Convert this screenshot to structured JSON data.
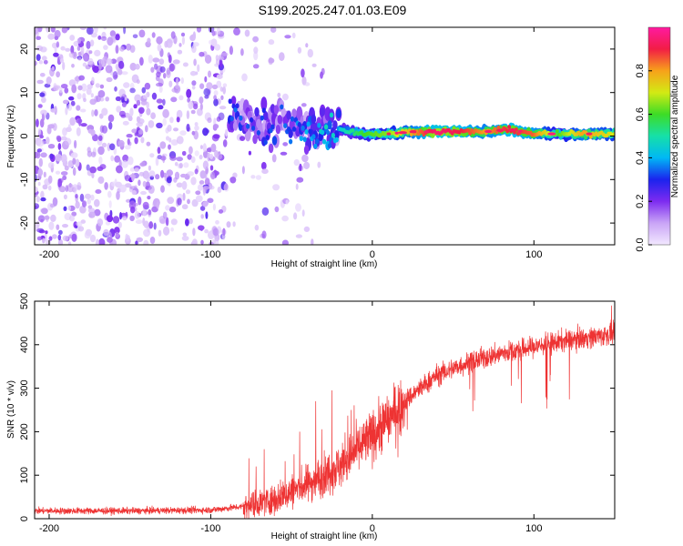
{
  "title": "S199.2025.247.01.03.E09",
  "colors": {
    "snr_line": "#ee3333",
    "scatter_purple": "#7a1cf0",
    "colormap": [
      "#f2e8ff",
      "#c9a4f6",
      "#7d2bf0",
      "#1b23ee",
      "#00b8f5",
      "#16e0a8",
      "#3ddc26",
      "#d3ea14",
      "#f7a21a",
      "#f21d45",
      "#ff1aa0"
    ]
  },
  "chart_data": [
    {
      "type": "heatmap",
      "name": "spectrogram",
      "xlabel": "Height of straight line (km)",
      "ylabel": "Frequency (Hz)",
      "xlim": [
        -209,
        150
      ],
      "ylim": [
        -25,
        25
      ],
      "xticks": [
        -200,
        -100,
        0,
        100
      ],
      "yticks": [
        -20,
        -10,
        0,
        10,
        20
      ],
      "colorbar": {
        "label": "Normalized spectral amplitude",
        "range": [
          0.0,
          1.0
        ],
        "ticks": [
          "0.0",
          "0.2",
          "0.4",
          "0.6",
          "0.8"
        ]
      },
      "noise_region_x": [
        -209,
        -90
      ],
      "signal_track": [
        {
          "x": -88,
          "f": 4.5,
          "amp": 0.35
        },
        {
          "x": -75,
          "f": 3.0,
          "amp": 0.3
        },
        {
          "x": -65,
          "f": 1.0,
          "amp": 0.3
        },
        {
          "x": -55,
          "f": 4.0,
          "amp": 0.28
        },
        {
          "x": -45,
          "f": 1.5,
          "amp": 0.32
        },
        {
          "x": -35,
          "f": 1.0,
          "amp": 0.4
        },
        {
          "x": -20,
          "f": 1.5,
          "amp": 0.45
        },
        {
          "x": -5,
          "f": 0.5,
          "amp": 0.6
        },
        {
          "x": 10,
          "f": 0.5,
          "amp": 0.65
        },
        {
          "x": 25,
          "f": 1.0,
          "amp": 0.8
        },
        {
          "x": 40,
          "f": 1.0,
          "amp": 0.95
        },
        {
          "x": 55,
          "f": 1.0,
          "amp": 0.9
        },
        {
          "x": 70,
          "f": 1.0,
          "amp": 0.8
        },
        {
          "x": 85,
          "f": 1.5,
          "amp": 0.9
        },
        {
          "x": 100,
          "f": 0.5,
          "amp": 0.85
        },
        {
          "x": 115,
          "f": 0.5,
          "amp": 0.6
        },
        {
          "x": 130,
          "f": 0.5,
          "amp": 0.8
        },
        {
          "x": 150,
          "f": 0.5,
          "amp": 0.7
        }
      ]
    },
    {
      "type": "line",
      "name": "snr",
      "xlabel": "Height of straight line (km)",
      "ylabel": "SNR (10 * v/v)",
      "xlim": [
        -209,
        150
      ],
      "ylim": [
        0,
        500
      ],
      "xticks": [
        -200,
        -100,
        0,
        100
      ],
      "yticks": [
        0,
        100,
        200,
        300,
        400,
        500
      ],
      "trend": {
        "x": [
          -209,
          -150,
          -100,
          -80,
          -60,
          -40,
          -20,
          0,
          20,
          40,
          60,
          80,
          100,
          120,
          140,
          150
        ],
        "y": [
          18,
          18,
          20,
          28,
          45,
          80,
          120,
          190,
          270,
          330,
          360,
          380,
          395,
          410,
          420,
          425
        ]
      },
      "spikes": [
        {
          "x": -72,
          "y": 120
        },
        {
          "x": -45,
          "y": 200
        },
        {
          "x": -35,
          "y": 270
        },
        {
          "x": -25,
          "y": 295
        },
        {
          "x": -13,
          "y": 250
        },
        {
          "x": 148,
          "y": 490
        }
      ]
    }
  ]
}
